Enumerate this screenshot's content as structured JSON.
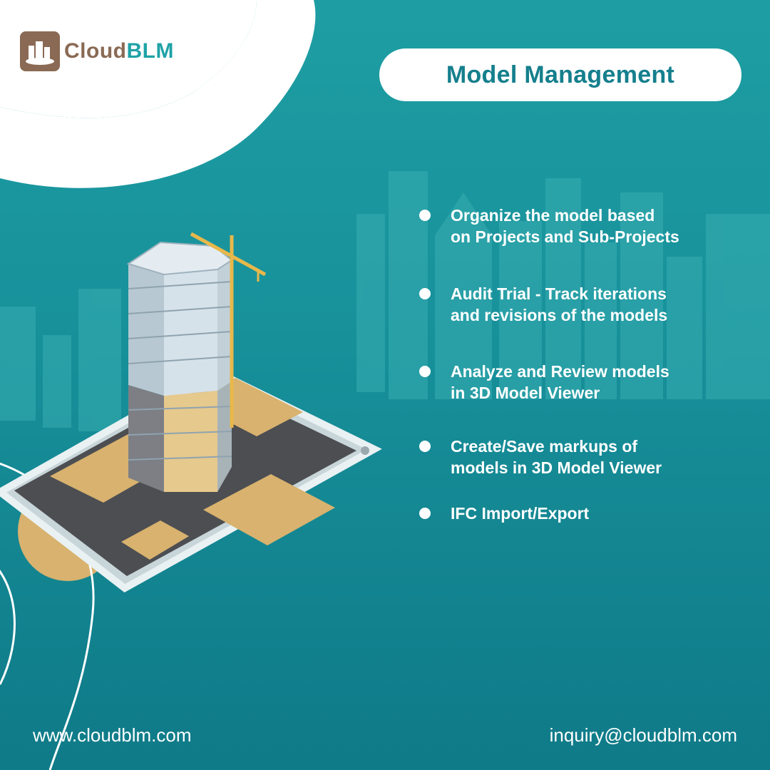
{
  "brand": {
    "name_part1": "Cloud",
    "name_part2": "BLM",
    "logo_icon": "cloud-buildings-icon",
    "colors": {
      "brown": "#8a6a54",
      "teal": "#1fa2a6"
    }
  },
  "header": {
    "title": "Model Management"
  },
  "features": [
    {
      "line1": "Organize the model based",
      "line2": "on Projects and Sub-Projects"
    },
    {
      "line1": "Audit Trial - Track iterations",
      "line2": "and revisions of the models"
    },
    {
      "line1": "Analyze and Review models",
      "line2": "in 3D Model Viewer"
    },
    {
      "line1": "Create/Save markups of",
      "line2": "models in 3D Model Viewer"
    },
    {
      "line1": "IFC Import/Export",
      "line2": ""
    }
  ],
  "footer": {
    "website": "www.cloudblm.com",
    "email": "inquiry@cloudblm.com"
  },
  "illustration": {
    "subject": "tower-under-construction-on-tablet",
    "icon": "tablet-building-icon"
  },
  "colors": {
    "background": "#17909a",
    "title_text": "#157f8d",
    "sand": "#d8b26e"
  }
}
